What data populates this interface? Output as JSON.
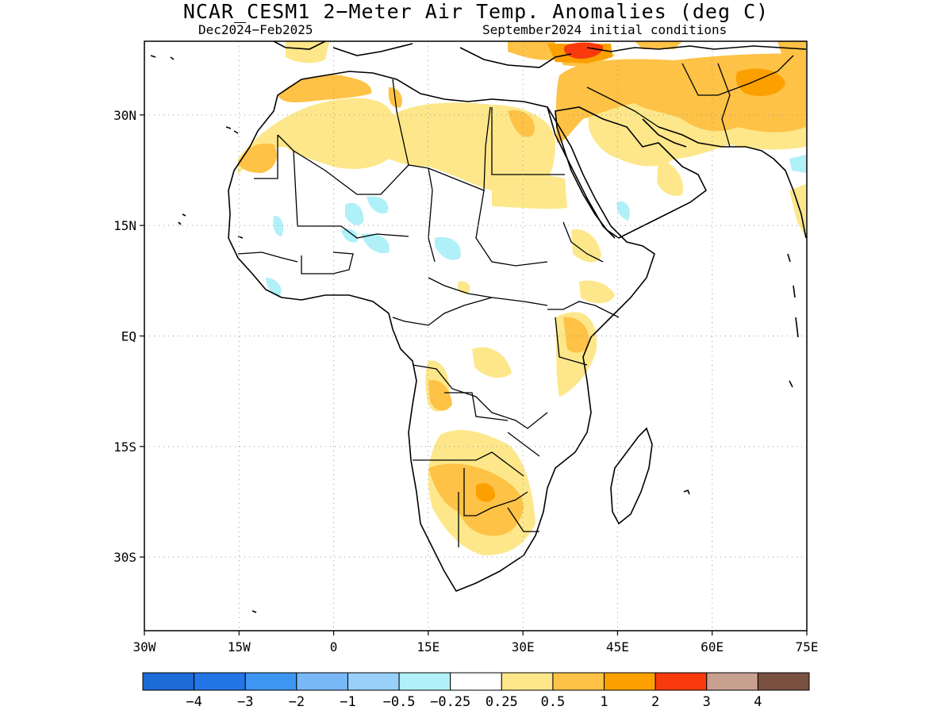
{
  "header": {
    "title": "NCAR_CESM1 2−Meter Air Temp. Anomalies (deg C)",
    "subtitle_left": "Dec2024−Feb2025",
    "subtitle_right": "September2024 initial conditions"
  },
  "axes": {
    "lat_ticks": [
      {
        "value": 30,
        "label": "30N"
      },
      {
        "value": 15,
        "label": "15N"
      },
      {
        "value": 0,
        "label": "EQ"
      },
      {
        "value": -15,
        "label": "15S"
      },
      {
        "value": -30,
        "label": "30S"
      }
    ],
    "lon_ticks": [
      {
        "value": -30,
        "label": "30W"
      },
      {
        "value": -15,
        "label": "15W"
      },
      {
        "value": 0,
        "label": "0"
      },
      {
        "value": 15,
        "label": "15E"
      },
      {
        "value": 30,
        "label": "30E"
      },
      {
        "value": 45,
        "label": "45E"
      },
      {
        "value": 60,
        "label": "60E"
      },
      {
        "value": 75,
        "label": "75E"
      }
    ],
    "lon_range": [
      -30,
      75
    ],
    "lat_range": [
      -40,
      40
    ],
    "grid": "dotted"
  },
  "colorbar": {
    "colors": [
      "#1c6ad6",
      "#2476e6",
      "#3d96f2",
      "#78b8f7",
      "#98d0fa",
      "#b0f0f8",
      "#ffffff",
      "#fde78a",
      "#fdc246",
      "#fca000",
      "#f83a0c",
      "#c8a090",
      "#7a5040"
    ],
    "labels": [
      "−4",
      "−3",
      "−2",
      "−1",
      "−0.5",
      "−0.25",
      "0.25",
      "0.5",
      "1",
      "2",
      "3",
      "4"
    ]
  },
  "chart_data": {
    "type": "heatmap",
    "title": "NCAR_CESM1 2−Meter Air Temp. Anomalies (deg C)",
    "period": "Dec2024−Feb2025",
    "initial_conditions": "September2024 initial conditions",
    "units": "deg C",
    "lon_range": [
      -30,
      75
    ],
    "lat_range": [
      -40,
      40
    ],
    "colors": {
      "cool_025_05": "#b0f0f8",
      "warm_025_05": "#fde78a",
      "warm_05_1": "#fdc246",
      "warm_1_2": "#fca000",
      "warm_2_3": "#f83a0c"
    },
    "regions": [
      {
        "name": "northwest-africa",
        "range": "0.25 to 0.5"
      },
      {
        "name": "morocco-coast",
        "range": "0.5 to 1"
      },
      {
        "name": "libya-egypt",
        "range": "0.25 to 0.5"
      },
      {
        "name": "middle-east-iran",
        "range": "0.5 to 1"
      },
      {
        "name": "turkey-east",
        "range": "2 to 3"
      },
      {
        "name": "southern-africa",
        "range": "0.5 to 1"
      },
      {
        "name": "east-africa",
        "range": "0.25 to 0.5"
      },
      {
        "name": "sahel-cool",
        "range": "-0.5 to -0.25"
      }
    ]
  }
}
